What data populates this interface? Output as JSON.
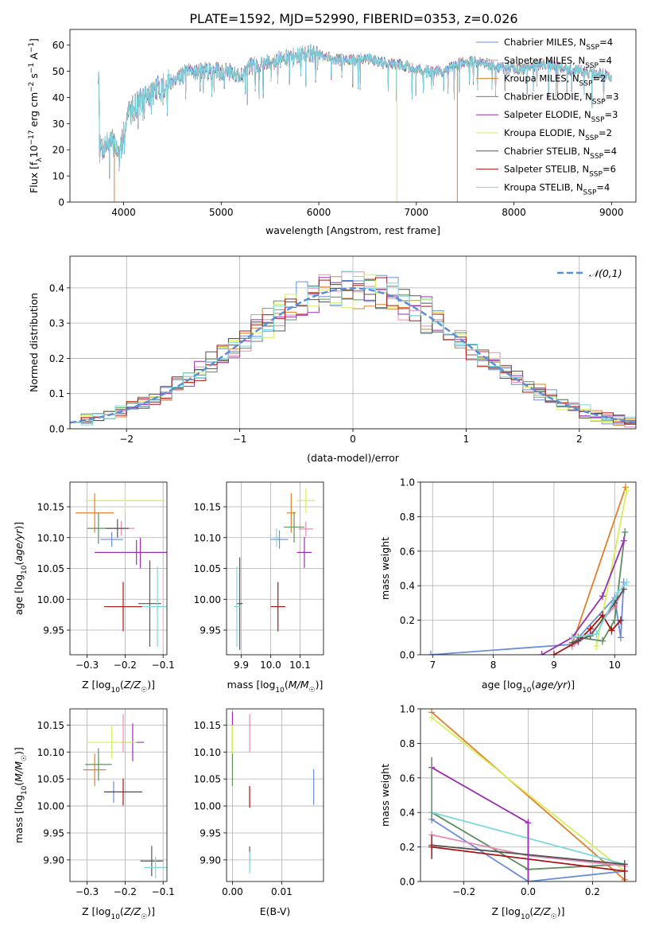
{
  "figure": {
    "title": "PLATE=1592, MJD=52990, FIBERID=0353, z=0.026"
  },
  "palette": {
    "Chabrier MILES": "#6a8fd8",
    "Salpeter MILES": "#e98ab4",
    "Kroupa MILES": "#e0802a",
    "Chabrier ELODIE": "#5e8f5e",
    "Salpeter ELODIE": "#9a2fb0",
    "Kroupa ELODIE": "#d6ef5a",
    "Chabrier STELIB": "#555555",
    "Salpeter STELIB": "#a81414",
    "Kroupa STELIB": "#7dd8dc"
  },
  "chart_data": [
    {
      "id": "spectrum",
      "type": "line",
      "xlabel": "wavelength [Angstrom, rest frame]",
      "ylabel": "Flux [f_λ 10^-17 erg cm^-2 s^-1 A^-1]",
      "xlim": [
        3450,
        9250
      ],
      "ylim": [
        0,
        66
      ],
      "xticks": [
        4000,
        5000,
        6000,
        7000,
        8000,
        9000
      ],
      "yticks": [
        0,
        10,
        20,
        30,
        40,
        50,
        60
      ],
      "grid": false,
      "legend_position": "top-right",
      "legend": [
        {
          "model": "Chabrier MILES",
          "text": "Chabrier MILES, N",
          "sub": "SSP",
          "n": "=4"
        },
        {
          "model": "Salpeter MILES",
          "text": "Salpeter MILES, N",
          "sub": "SSP",
          "n": "=4"
        },
        {
          "model": "Kroupa MILES",
          "text": "Kroupa MILES, N",
          "sub": "SSP",
          "n": "=2"
        },
        {
          "model": "Chabrier ELODIE",
          "text": "Chabrier ELODIE, N",
          "sub": "SSP",
          "n": "=3"
        },
        {
          "model": "Salpeter ELODIE",
          "text": "Salpeter ELODIE, N",
          "sub": "SSP",
          "n": "=3"
        },
        {
          "model": "Kroupa ELODIE",
          "text": "Kroupa ELODIE, N",
          "sub": "SSP",
          "n": "=2"
        },
        {
          "model": "Chabrier STELIB",
          "text": "Chabrier STELIB, N",
          "sub": "SSP",
          "n": "=4"
        },
        {
          "model": "Salpeter STELIB",
          "text": "Salpeter STELIB, N",
          "sub": "SSP",
          "n": "=6"
        },
        {
          "model": "Kroupa STELIB",
          "text": "Kroupa STELIB, N",
          "sub": "SSP",
          "n": "=4"
        }
      ],
      "continuum": [
        [
          3750,
          20
        ],
        [
          3850,
          23
        ],
        [
          3920,
          22
        ],
        [
          3960,
          16
        ],
        [
          4000,
          27
        ],
        [
          4050,
          34
        ],
        [
          4150,
          38
        ],
        [
          4300,
          42
        ],
        [
          4400,
          44
        ],
        [
          4500,
          47
        ],
        [
          4700,
          50
        ],
        [
          4900,
          50
        ],
        [
          5100,
          50
        ],
        [
          5200,
          48
        ],
        [
          5300,
          52
        ],
        [
          5500,
          54
        ],
        [
          5700,
          55
        ],
        [
          5900,
          57
        ],
        [
          6100,
          55
        ],
        [
          6300,
          54
        ],
        [
          6500,
          55
        ],
        [
          6700,
          53
        ],
        [
          6900,
          52
        ],
        [
          7100,
          50
        ],
        [
          7300,
          50
        ],
        [
          7500,
          54
        ],
        [
          7700,
          53
        ],
        [
          7900,
          51
        ],
        [
          8100,
          51
        ],
        [
          8300,
          53
        ],
        [
          8500,
          51
        ],
        [
          8700,
          50
        ],
        [
          8900,
          49
        ],
        [
          9000,
          48
        ]
      ],
      "dips": [
        {
          "model": "Kroupa MILES",
          "x": 3905
        },
        {
          "model": "Kroupa ELODIE",
          "x": 6800
        },
        {
          "model": "Kroupa MILES",
          "x": 7420
        }
      ]
    },
    {
      "id": "residuals",
      "type": "histogram",
      "xlabel": "(data-model)/error",
      "ylabel": "Normed distribution",
      "xlim": [
        -2.5,
        2.5
      ],
      "ylim": [
        0,
        0.49
      ],
      "xticks": [
        -2,
        -1,
        0,
        1,
        2
      ],
      "yticks": [
        0.0,
        0.1,
        0.2,
        0.3,
        0.4
      ],
      "bin_width": 0.1,
      "grid": true,
      "legend_position": "top-right",
      "reference_curve": {
        "name": "𝒩(0,1)",
        "style": "dashed",
        "color": "#5b8ed8"
      }
    },
    {
      "id": "age-vs-Z",
      "type": "errorbar",
      "xlabel": "Z [log10(Z/Z☉)]",
      "ylabel": "age [log10(age/yr)]",
      "xlim": [
        -0.345,
        -0.09
      ],
      "ylim": [
        9.91,
        10.19
      ],
      "xticks": [
        -0.3,
        -0.2,
        -0.1
      ],
      "yticks": [
        9.95,
        10.0,
        10.05,
        10.1,
        10.15
      ],
      "grid": true,
      "points": [
        {
          "model": "Kroupa ELODIE",
          "x": -0.2,
          "y": 10.16,
          "xerr": 0.105,
          "yerr": 0.02
        },
        {
          "model": "Kroupa MILES",
          "x": -0.28,
          "y": 10.14,
          "xerr": 0.05,
          "yerr": 0.032
        },
        {
          "model": "Chabrier ELODIE",
          "x": -0.27,
          "y": 10.115,
          "xerr": 0.03,
          "yerr": 0.025
        },
        {
          "model": "Salpeter MILES",
          "x": -0.21,
          "y": 10.115,
          "xerr": 0.035,
          "yerr": 0.012
        },
        {
          "model": "Chabrier STELIB",
          "x": -0.22,
          "y": 10.115,
          "xerr": 0.03,
          "yerr": 0.015
        },
        {
          "model": "Chabrier MILES",
          "x": -0.235,
          "y": 10.097,
          "xerr": 0.03,
          "yerr": 0.012
        },
        {
          "model": "Salpeter ELODIE",
          "x": -0.17,
          "y": 10.076,
          "xerr": 0.11,
          "yerr": 0.02
        },
        {
          "model": "Salpeter STELIB",
          "x": -0.205,
          "y": 9.988,
          "xerr": 0.05,
          "yerr": 0.04
        },
        {
          "model": "Chabrier STELIB",
          "x": -0.135,
          "y": 9.993,
          "xerr": 0.03,
          "yerr": 0.07
        },
        {
          "model": "Kroupa STELIB",
          "x": -0.115,
          "y": 9.988,
          "xerr": 0.04,
          "yerr": 0.065
        },
        {
          "model": "Salpeter ELODIE",
          "x": -0.16,
          "y": 10.075,
          "xerr": 0.0,
          "yerr": 0.025
        }
      ]
    },
    {
      "id": "age-vs-mass",
      "type": "errorbar",
      "xlabel": "mass [log10(M/M☉)]",
      "ylabel": "",
      "xlim": [
        9.85,
        10.18
      ],
      "ylim": [
        9.91,
        10.19
      ],
      "xticks": [
        9.9,
        10.0,
        10.1
      ],
      "yticks": [
        9.95,
        10.0,
        10.05,
        10.1,
        10.15
      ],
      "grid": true,
      "points": [
        {
          "model": "Kroupa ELODIE",
          "x": 10.12,
          "y": 10.16,
          "xerr": 0.03,
          "yerr": 0.02
        },
        {
          "model": "Kroupa MILES",
          "x": 10.07,
          "y": 10.14,
          "xerr": 0.015,
          "yerr": 0.032
        },
        {
          "model": "Chabrier ELODIE",
          "x": 10.08,
          "y": 10.117,
          "xerr": 0.035,
          "yerr": 0.025
        },
        {
          "model": "Salpeter MILES",
          "x": 10.12,
          "y": 10.114,
          "xerr": 0.025,
          "yerr": 0.012
        },
        {
          "model": "Chabrier MILES",
          "x": 10.03,
          "y": 10.097,
          "xerr": 0.03,
          "yerr": 0.015
        },
        {
          "model": "Kroupa STELIB",
          "x": 10.02,
          "y": 10.1,
          "xerr": 0.01,
          "yerr": 0.015
        },
        {
          "model": "Salpeter ELODIE",
          "x": 10.115,
          "y": 10.076,
          "xerr": 0.025,
          "yerr": 0.025
        },
        {
          "model": "Salpeter STELIB",
          "x": 10.025,
          "y": 9.988,
          "xerr": 0.025,
          "yerr": 0.04
        },
        {
          "model": "Chabrier STELIB",
          "x": 9.895,
          "y": 9.993,
          "xerr": 0.01,
          "yerr": 0.075
        },
        {
          "model": "Kroupa STELIB",
          "x": 9.885,
          "y": 9.988,
          "xerr": 0.01,
          "yerr": 0.065
        }
      ]
    },
    {
      "id": "massweight-vs-age",
      "type": "line",
      "xlabel": "age [log10(age/yr)]",
      "ylabel": "mass weight",
      "xlim": [
        6.8,
        10.35
      ],
      "ylim": [
        0,
        1.0
      ],
      "xticks": [
        7,
        8,
        9,
        10
      ],
      "yticks": [
        0.0,
        0.2,
        0.4,
        0.6,
        0.8,
        1.0
      ],
      "grid": true,
      "series": [
        {
          "model": "Chabrier MILES",
          "x": [
            6.97,
            9.3,
            10.0,
            10.1,
            10.15
          ],
          "y": [
            0.0,
            0.06,
            0.33,
            0.1,
            0.42
          ]
        },
        {
          "model": "Kroupa MILES",
          "x": [
            9.3,
            10.18
          ],
          "y": [
            0.06,
            0.97
          ]
        },
        {
          "model": "Kroupa ELODIE",
          "x": [
            9.7,
            10.2
          ],
          "y": [
            0.05,
            0.95
          ]
        },
        {
          "model": "Chabrier ELODIE",
          "x": [
            9.4,
            9.8,
            10.0,
            10.17
          ],
          "y": [
            0.1,
            0.08,
            0.2,
            0.71
          ]
        },
        {
          "model": "Salpeter ELODIE",
          "x": [
            8.8,
            9.3,
            9.8,
            10.15
          ],
          "y": [
            0.0,
            0.1,
            0.34,
            0.66
          ]
        },
        {
          "model": "Salpeter MILES",
          "x": [
            9.3,
            9.6,
            10.0,
            10.15
          ],
          "y": [
            0.05,
            0.12,
            0.28,
            0.38
          ]
        },
        {
          "model": "Salpeter STELIB",
          "x": [
            9.0,
            9.4,
            9.6,
            9.8,
            9.95,
            10.1
          ],
          "y": [
            0.0,
            0.08,
            0.15,
            0.23,
            0.14,
            0.2
          ]
        },
        {
          "model": "Chabrier STELIB",
          "x": [
            9.3,
            9.6,
            10.0,
            10.15
          ],
          "y": [
            0.07,
            0.11,
            0.3,
            0.38
          ]
        },
        {
          "model": "Kroupa STELIB",
          "x": [
            9.3,
            9.7,
            10.05,
            10.2
          ],
          "y": [
            0.1,
            0.12,
            0.36,
            0.42
          ]
        }
      ]
    },
    {
      "id": "mass-vs-Z",
      "type": "errorbar",
      "xlabel": "Z [log10(Z/Z☉)]",
      "ylabel": "mass [log10(M/M☉)]",
      "xlim": [
        -0.345,
        -0.09
      ],
      "ylim": [
        9.86,
        10.18
      ],
      "xticks": [
        -0.3,
        -0.2,
        -0.1
      ],
      "yticks": [
        9.9,
        9.95,
        10.0,
        10.05,
        10.1,
        10.15
      ],
      "grid": true,
      "points": [
        {
          "model": "Salpeter MILES",
          "x": -0.205,
          "y": 10.135,
          "xerr": 0.0,
          "yerr": 0.035
        },
        {
          "model": "Salpeter ELODIE",
          "x": -0.18,
          "y": 10.118,
          "xerr": 0.03,
          "yerr": 0.035
        },
        {
          "model": "Kroupa ELODIE",
          "x": -0.235,
          "y": 10.118,
          "xerr": 0.065,
          "yerr": 0.03
        },
        {
          "model": "Chabrier ELODIE",
          "x": -0.27,
          "y": 10.077,
          "xerr": 0.035,
          "yerr": 0.03
        },
        {
          "model": "Kroupa MILES",
          "x": -0.28,
          "y": 10.067,
          "xerr": 0.03,
          "yerr": 0.03
        },
        {
          "model": "Chabrier MILES",
          "x": -0.23,
          "y": 10.026,
          "xerr": 0.025,
          "yerr": 0.02
        },
        {
          "model": "Salpeter STELIB",
          "x": -0.205,
          "y": 10.026,
          "xerr": 0.05,
          "yerr": 0.025
        },
        {
          "model": "Chabrier STELIB",
          "x": -0.13,
          "y": 9.898,
          "xerr": 0.03,
          "yerr": 0.028
        },
        {
          "model": "Kroupa STELIB",
          "x": -0.12,
          "y": 9.886,
          "xerr": 0.03,
          "yerr": 0.02
        }
      ]
    },
    {
      "id": "mass-vs-EBV",
      "type": "errorbar",
      "xlabel": "E(B-V)",
      "ylabel": "",
      "xlim": [
        -0.0012,
        0.0185
      ],
      "ylim": [
        9.86,
        10.18
      ],
      "xticks": [
        0.0,
        0.01
      ],
      "yticks": [
        9.9,
        9.95,
        10.0,
        10.05,
        10.1,
        10.15
      ],
      "grid": true,
      "points": [
        {
          "model": "Salpeter ELODIE",
          "x": 0.0,
          "y": 10.135,
          "xerr": 0.0,
          "yerr": 0.04
        },
        {
          "model": "Salpeter MILES",
          "x": 0.0035,
          "y": 10.135,
          "xerr": 0.0,
          "yerr": 0.035
        },
        {
          "model": "Kroupa ELODIE",
          "x": 0.0,
          "y": 10.11,
          "xerr": 0.0,
          "yerr": 0.04
        },
        {
          "model": "Chabrier ELODIE",
          "x": 0.0,
          "y": 10.067,
          "xerr": 0.0,
          "yerr": 0.03
        },
        {
          "model": "Salpeter STELIB",
          "x": 0.0035,
          "y": 10.017,
          "xerr": 0.0,
          "yerr": 0.02
        },
        {
          "model": "Chabrier MILES",
          "x": 0.0165,
          "y": 10.035,
          "xerr": 0.0,
          "yerr": 0.033
        },
        {
          "model": "Chabrier STELIB",
          "x": 0.0035,
          "y": 9.91,
          "xerr": 0.0,
          "yerr": 0.015
        },
        {
          "model": "Kroupa STELIB",
          "x": 0.0035,
          "y": 9.895,
          "xerr": 0.0,
          "yerr": 0.02
        }
      ]
    },
    {
      "id": "massweight-vs-Z",
      "type": "line",
      "xlabel": "Z [log10(Z/Z☉)]",
      "ylabel": "mass weight",
      "xlim": [
        -0.335,
        0.335
      ],
      "ylim": [
        0,
        1.0
      ],
      "xticks": [
        -0.2,
        0.0,
        0.2
      ],
      "yticks": [
        0.0,
        0.2,
        0.4,
        0.6,
        0.8,
        1.0
      ],
      "grid": true,
      "series": [
        {
          "model": "Kroupa MILES",
          "x": [
            -0.3,
            0.3
          ],
          "y": [
            0.98,
            0.01
          ]
        },
        {
          "model": "Kroupa ELODIE",
          "x": [
            -0.3,
            0.3
          ],
          "y": [
            0.95,
            0.06
          ]
        },
        {
          "model": "Salpeter ELODIE",
          "x": [
            -0.3,
            0.0,
            0.0
          ],
          "y": [
            0.66,
            0.34,
            0.0
          ]
        },
        {
          "model": "Chabrier ELODIE",
          "x": [
            -0.3,
            0.0,
            0.3
          ],
          "y": [
            0.4,
            0.07,
            0.1
          ]
        },
        {
          "model": "Kroupa STELIB",
          "x": [
            -0.3,
            0.3
          ],
          "y": [
            0.4,
            0.1
          ]
        },
        {
          "model": "Chabrier MILES",
          "x": [
            -0.3,
            0.0,
            0.3
          ],
          "y": [
            0.36,
            0.0,
            0.06
          ]
        },
        {
          "model": "Salpeter MILES",
          "x": [
            -0.3,
            0.0,
            0.3
          ],
          "y": [
            0.27,
            0.15,
            0.09
          ]
        },
        {
          "model": "Chabrier STELIB",
          "x": [
            -0.3,
            0.3
          ],
          "y": [
            0.21,
            0.1
          ]
        },
        {
          "model": "Salpeter STELIB",
          "x": [
            -0.3,
            0.3
          ],
          "y": [
            0.2,
            0.06
          ]
        }
      ],
      "vertical_errors": [
        {
          "model": "Chabrier ELODIE",
          "x": -0.3,
          "y1": 0.35,
          "y2": 0.72
        },
        {
          "model": "Salpeter STELIB",
          "x": -0.3,
          "y1": 0.13,
          "y2": 0.27
        },
        {
          "model": "Salpeter ELODIE",
          "x": 0.0,
          "y1": 0.0,
          "y2": 0.35
        },
        {
          "model": "Salpeter STELIB",
          "x": 0.3,
          "y1": 0.0,
          "y2": 0.1
        }
      ]
    }
  ]
}
